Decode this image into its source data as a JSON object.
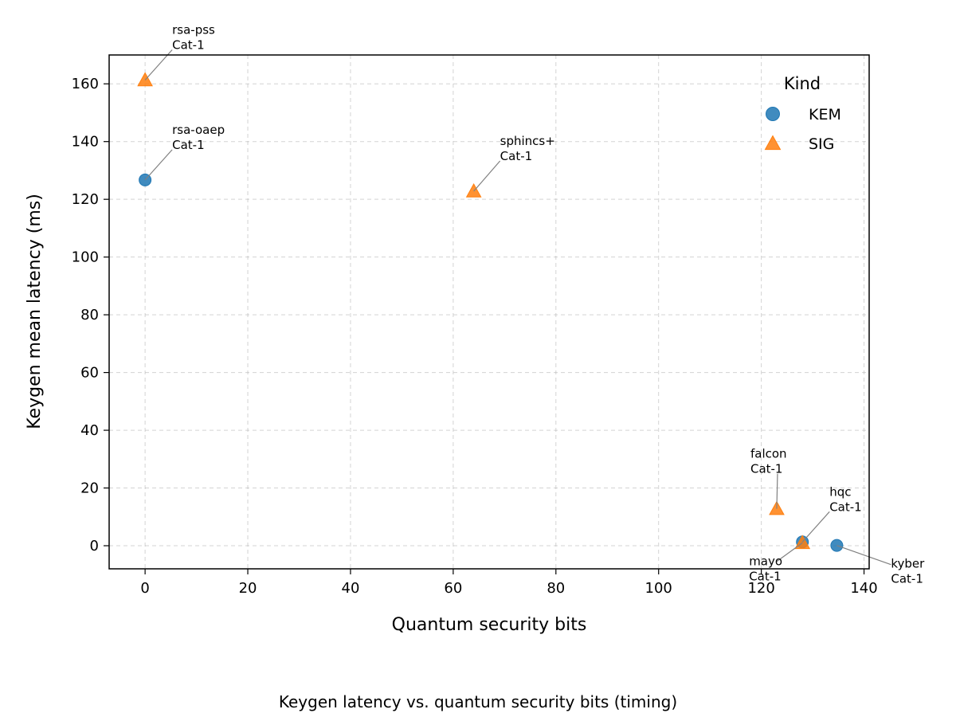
{
  "chart_data": {
    "type": "scatter",
    "xlabel": "Quantum security bits",
    "ylabel": "Keygen mean latency (ms)",
    "caption": "Keygen latency vs. quantum security bits (timing)",
    "xlim": [
      -7,
      141
    ],
    "ylim": [
      -8,
      170
    ],
    "xticks": [
      0,
      20,
      40,
      60,
      80,
      100,
      120,
      140
    ],
    "yticks": [
      0,
      20,
      40,
      60,
      80,
      100,
      120,
      140,
      160
    ],
    "grid": true,
    "legend": {
      "title": "Kind",
      "placement": "top-right"
    },
    "series": [
      {
        "name": "KEM",
        "marker": "circle",
        "color": "#1f77b4",
        "points": [
          {
            "x": 0,
            "y": 126.7,
            "label": [
              "rsa-oaep",
              "Cat-1"
            ]
          },
          {
            "x": 128,
            "y": 1.3,
            "label": [
              "hqc",
              "Cat-1"
            ]
          },
          {
            "x": 134.7,
            "y": 0.1,
            "label": [
              "kyber",
              "Cat-1"
            ]
          }
        ]
      },
      {
        "name": "SIG",
        "marker": "triangle",
        "color": "#ff7f0e",
        "points": [
          {
            "x": 0,
            "y": 161.3,
            "label": [
              "rsa-pss",
              "Cat-1"
            ]
          },
          {
            "x": 64,
            "y": 122.8,
            "label": [
              "sphincs+",
              "Cat-1"
            ]
          },
          {
            "x": 123,
            "y": 12.8,
            "label": [
              "falcon",
              "Cat-1"
            ]
          },
          {
            "x": 128,
            "y": 1.0,
            "label": [
              "mayo",
              "Cat-1"
            ]
          }
        ]
      }
    ]
  }
}
